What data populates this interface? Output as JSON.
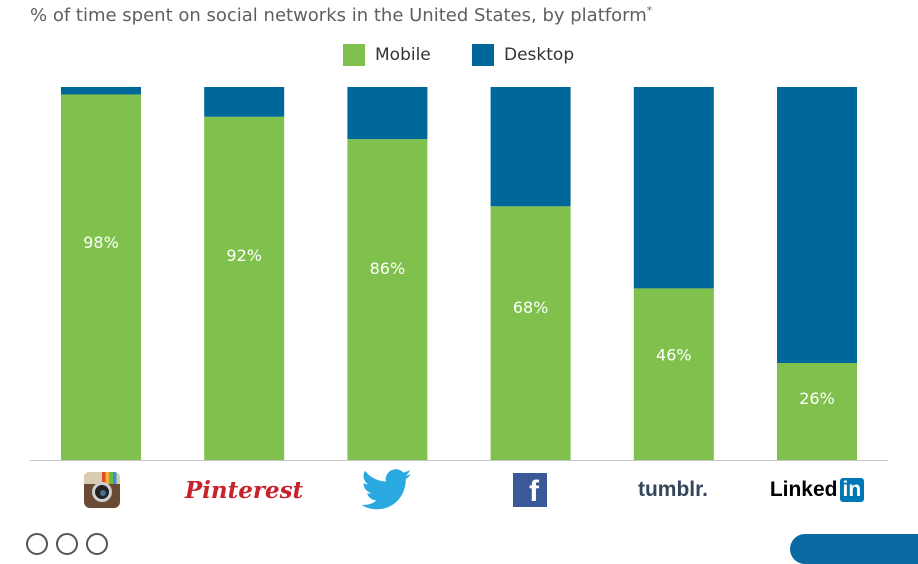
{
  "title": "% of time spent on social networks in the United States, by platform",
  "title_mark": "*",
  "colors": {
    "mobile": "#80c04c",
    "desktop": "#00679a",
    "baseline": "#c8c8c8"
  },
  "legend": [
    {
      "label": "Mobile",
      "color": "#80c04c"
    },
    {
      "label": "Desktop",
      "color": "#00679a"
    }
  ],
  "logos": {
    "instagram": "instagram-icon",
    "pinterest": "Pinterest",
    "twitter": "twitter-bird-icon",
    "facebook": "f",
    "tumblr": "tumblr.",
    "linkedin_text": "Linked",
    "linkedin_box": "in"
  },
  "chart_data": {
    "type": "bar",
    "stacked": true,
    "categories": [
      "Instagram",
      "Pinterest",
      "Twitter",
      "Facebook",
      "Tumblr",
      "LinkedIn"
    ],
    "series": [
      {
        "name": "Mobile",
        "values": [
          98,
          92,
          86,
          68,
          46,
          26
        ]
      },
      {
        "name": "Desktop",
        "values": [
          2,
          8,
          14,
          32,
          54,
          74
        ]
      }
    ],
    "data_labels": [
      "98%",
      "92%",
      "86%",
      "68%",
      "46%",
      "26%"
    ],
    "ylim": [
      0,
      100
    ],
    "grid": false,
    "legend_position": "top-center"
  }
}
